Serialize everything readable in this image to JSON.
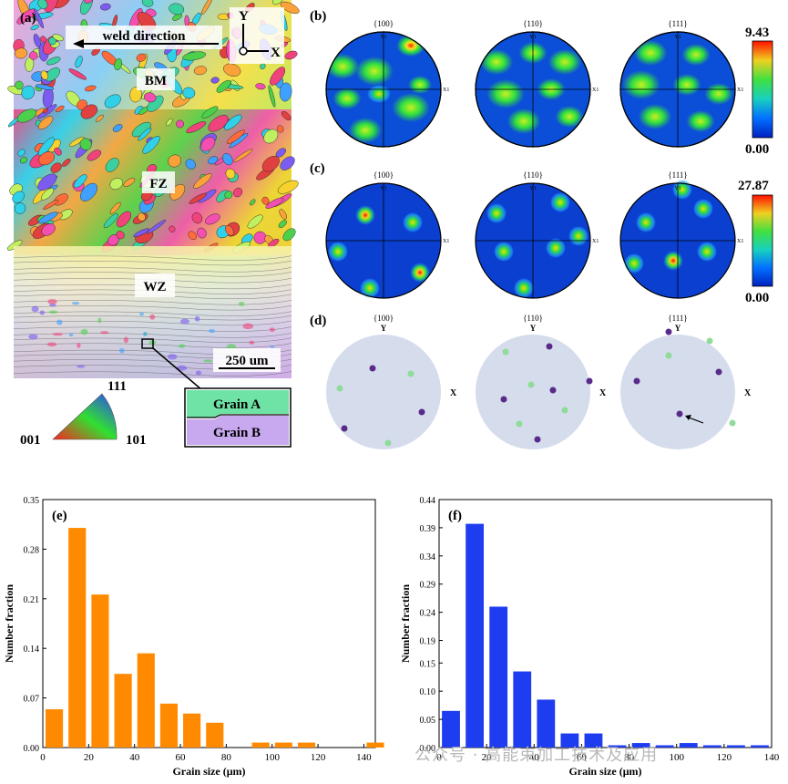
{
  "panel_a": {
    "label": "(a)",
    "weld_direction": "weld direction",
    "axis_y": "Y",
    "axis_x": "X",
    "zones": [
      "BM",
      "FZ",
      "WZ"
    ],
    "scale_bar": "250 um",
    "grain_a": "Grain A",
    "grain_b": "Grain B",
    "ipf": {
      "top": "111",
      "left": "001",
      "right": "101"
    }
  },
  "panel_b": {
    "label": "(b)",
    "poles": [
      "{100}",
      "{110}",
      "{111}"
    ],
    "colorbar_max": "9.43",
    "colorbar_min": "0.00"
  },
  "panel_c": {
    "label": "(c)",
    "poles": [
      "{100}",
      "{110}",
      "{111}"
    ],
    "colorbar_max": "27.87",
    "colorbar_min": "0.00"
  },
  "panel_d": {
    "label": "(d)",
    "poles": [
      "{100}",
      "{110}",
      "{111}"
    ],
    "axis_y": "Y",
    "axis_x": "X"
  },
  "pole_axis_small": {
    "y": "Y1",
    "x": "X1"
  },
  "colors": {
    "grain_a": "#8fdc9a",
    "grain_b": "#5a2a8a",
    "hist_e": "#ff8a00",
    "hist_f": "#1f3df0",
    "disc": "#d5dcec"
  },
  "watermark": "公众号 · 高能束加工技术及应用",
  "chart_data": [
    {
      "type": "bar",
      "panel": "(e)",
      "xlabel": "Grain size (μm)",
      "ylabel": "Number fraction",
      "xlim": [
        0,
        145
      ],
      "ylim": [
        0,
        0.35
      ],
      "xticks": [
        "0",
        "20",
        "40",
        "60",
        "80",
        "100",
        "120",
        "140"
      ],
      "yticks": [
        "0.00",
        "0.07",
        "0.14",
        "0.21",
        "0.28",
        "0.35"
      ],
      "bin_centers": [
        5,
        15,
        25,
        35,
        45,
        55,
        65,
        75,
        85,
        95,
        105,
        115,
        125,
        135,
        145
      ],
      "values": [
        0.054,
        0.31,
        0.216,
        0.104,
        0.133,
        0.062,
        0.048,
        0.035,
        0,
        0.007,
        0.007,
        0.007,
        0,
        0,
        0.007
      ]
    },
    {
      "type": "bar",
      "panel": "(f)",
      "xlabel": "Grain size (μm)",
      "ylabel": "Number fraction",
      "xlim": [
        0,
        140
      ],
      "ylim": [
        0,
        0.44
      ],
      "xticks": [
        "0",
        "20",
        "40",
        "60",
        "80",
        "100",
        "120",
        "140"
      ],
      "yticks": [
        "0.00",
        "0.05",
        "0.10",
        "0.15",
        "0.19",
        "0.24",
        "0.29",
        "0.34",
        "0.39",
        "0.44"
      ],
      "bin_centers": [
        5,
        15,
        25,
        35,
        45,
        55,
        65,
        75,
        85,
        95,
        105,
        115,
        125,
        135
      ],
      "values": [
        0.065,
        0.397,
        0.25,
        0.135,
        0.085,
        0.025,
        0.025,
        0.004,
        0.008,
        0.004,
        0.008,
        0.004,
        0.004,
        0.004
      ]
    }
  ]
}
